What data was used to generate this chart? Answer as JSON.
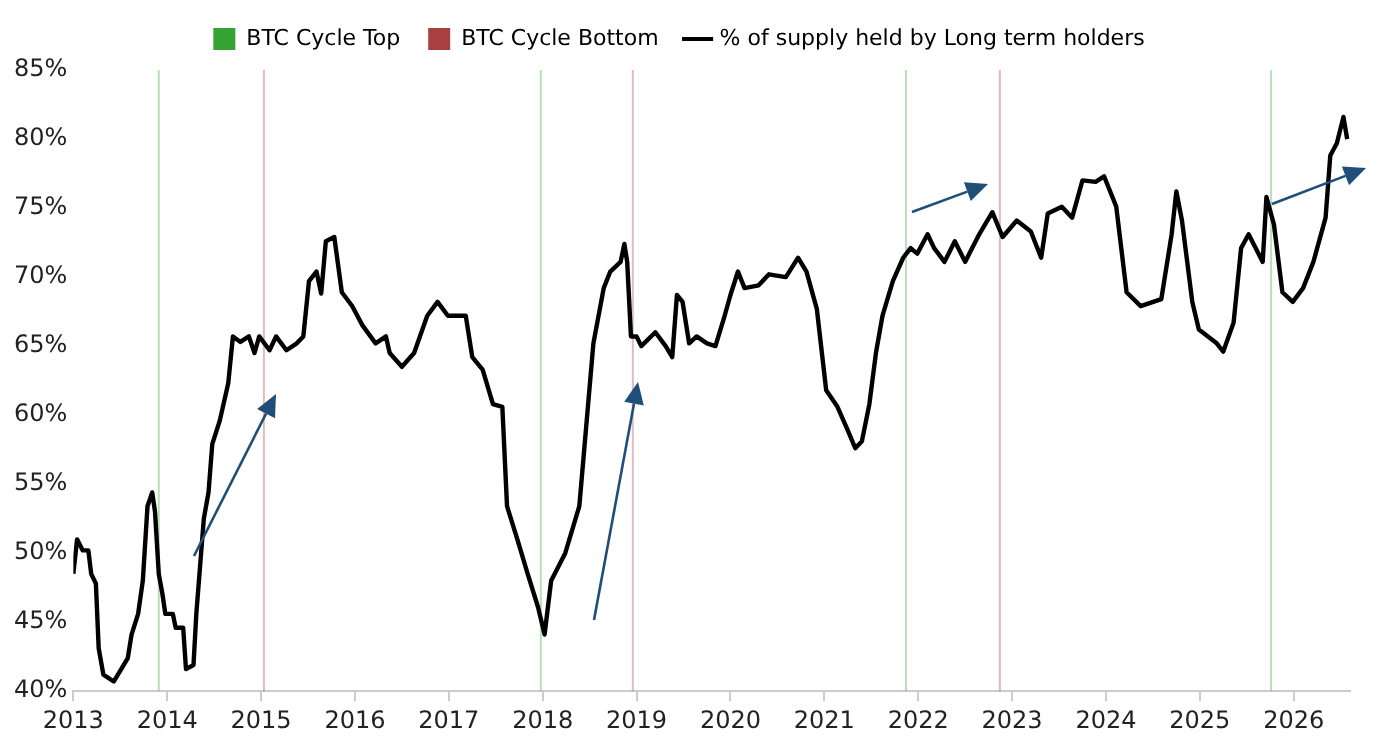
{
  "chart_data": {
    "type": "line",
    "x": [
      2013.0,
      2013.04,
      2013.1,
      2013.16,
      2013.19,
      2013.24,
      2013.27,
      2013.32,
      2013.43,
      2013.51,
      2013.58,
      2013.62,
      2013.69,
      2013.74,
      2013.79,
      2013.84,
      2013.87,
      2013.91,
      2013.95,
      2013.98,
      2014.06,
      2014.09,
      2014.17,
      2014.2,
      2014.28,
      2014.31,
      2014.39,
      2014.44,
      2014.48,
      2014.56,
      2014.65,
      2014.7,
      2014.78,
      2014.87,
      2014.93,
      2014.98,
      2015.09,
      2015.16,
      2015.27,
      2015.38,
      2015.45,
      2015.51,
      2015.59,
      2015.64,
      2015.69,
      2015.78,
      2015.86,
      2015.97,
      2016.08,
      2016.22,
      2016.33,
      2016.37,
      2016.5,
      2016.63,
      2016.77,
      2016.88,
      2016.99,
      2017.07,
      2017.18,
      2017.25,
      2017.36,
      2017.47,
      2017.57,
      2017.62,
      2017.73,
      2017.84,
      2017.95,
      2018.02,
      2018.09,
      2018.24,
      2018.39,
      2018.46,
      2018.54,
      2018.65,
      2018.72,
      2018.83,
      2018.87,
      2018.9,
      2018.94,
      2019.0,
      2019.05,
      2019.2,
      2019.31,
      2019.38,
      2019.43,
      2019.49,
      2019.56,
      2019.64,
      2019.75,
      2019.84,
      2019.93,
      2020.0,
      2020.08,
      2020.15,
      2020.3,
      2020.41,
      2020.59,
      2020.72,
      2020.81,
      2020.92,
      2021.02,
      2021.14,
      2021.25,
      2021.33,
      2021.4,
      2021.48,
      2021.55,
      2021.62,
      2021.73,
      2021.84,
      2021.92,
      2021.99,
      2022.1,
      2022.17,
      2022.28,
      2022.39,
      2022.5,
      2022.65,
      2022.79,
      2022.9,
      2023.05,
      2023.2,
      2023.31,
      2023.38,
      2023.53,
      2023.64,
      2023.75,
      2023.89,
      2023.98,
      2024.11,
      2024.22,
      2024.37,
      2024.59,
      2024.7,
      2024.75,
      2024.81,
      2024.92,
      2024.99,
      2025.18,
      2025.25,
      2025.36,
      2025.44,
      2025.52,
      2025.67,
      2025.71,
      2025.79,
      2025.88,
      2025.99,
      2026.1,
      2026.21,
      2026.34,
      2026.39,
      2026.46,
      2026.53,
      2026.57
    ],
    "series": [
      {
        "name": "% of supply held by Long term holders",
        "color": "#000000",
        "values": [
          48.5,
          51.0,
          50.2,
          50.2,
          48.5,
          47.8,
          43.1,
          41.2,
          40.7,
          41.6,
          42.4,
          44.1,
          45.6,
          48.0,
          53.4,
          54.4,
          53.0,
          48.5,
          47.0,
          45.6,
          45.6,
          44.6,
          44.6,
          41.6,
          41.9,
          45.6,
          52.5,
          54.4,
          57.9,
          59.6,
          62.3,
          65.7,
          65.3,
          65.7,
          64.5,
          65.7,
          64.7,
          65.7,
          64.7,
          65.2,
          65.7,
          69.7,
          70.4,
          68.8,
          72.6,
          72.9,
          68.9,
          67.9,
          66.5,
          65.2,
          65.7,
          64.5,
          63.5,
          64.5,
          67.2,
          68.2,
          67.2,
          67.2,
          67.2,
          64.2,
          63.3,
          60.8,
          60.6,
          53.4,
          51.0,
          48.5,
          46.1,
          44.1,
          48.0,
          50.0,
          53.4,
          58.9,
          65.2,
          69.2,
          70.4,
          71.1,
          72.4,
          71.1,
          65.7,
          65.7,
          65.0,
          66.0,
          65.0,
          64.2,
          68.7,
          68.2,
          65.2,
          65.7,
          65.2,
          65.0,
          67.0,
          68.7,
          70.4,
          69.2,
          69.4,
          70.2,
          70.0,
          71.4,
          70.4,
          67.7,
          61.8,
          60.6,
          58.9,
          57.6,
          58.1,
          60.8,
          64.5,
          67.2,
          69.7,
          71.4,
          72.1,
          71.7,
          73.1,
          72.1,
          71.1,
          72.6,
          71.1,
          73.1,
          74.7,
          72.9,
          74.1,
          73.3,
          71.4,
          74.6,
          75.1,
          74.3,
          77.0,
          76.9,
          77.3,
          75.1,
          68.9,
          67.9,
          68.4,
          73.1,
          76.2,
          74.1,
          68.2,
          66.2,
          65.2,
          64.6,
          66.7,
          72.1,
          73.1,
          71.1,
          75.8,
          73.8,
          68.9,
          68.2,
          69.2,
          71.1,
          74.3,
          78.8,
          79.7,
          81.6,
          80.0
        ]
      }
    ],
    "xlim": [
      2013,
      2026.6
    ],
    "xticks": [
      2013,
      2014,
      2015,
      2016,
      2017,
      2018,
      2019,
      2020,
      2021,
      2022,
      2023,
      2024,
      2025,
      2026
    ],
    "ylim": [
      40,
      85
    ],
    "yticks": [
      {
        "value": 40,
        "label": "40%"
      },
      {
        "value": 45,
        "label": "45%"
      },
      {
        "value": 50,
        "label": "50%"
      },
      {
        "value": 55,
        "label": "55%"
      },
      {
        "value": 60,
        "label": "60%"
      },
      {
        "value": 65,
        "label": "65%"
      },
      {
        "value": 70,
        "label": "70%"
      },
      {
        "value": 75,
        "label": "75%"
      },
      {
        "value": 80,
        "label": "80%"
      },
      {
        "value": 85,
        "label": "85%"
      }
    ],
    "ref_lines": [
      {
        "axis": "x",
        "value": 2013.91,
        "label": "BTC Cycle Top",
        "color": "#34a334"
      },
      {
        "axis": "x",
        "value": 2015.03,
        "label": "BTC Cycle Bottom",
        "color": "#a84040"
      },
      {
        "axis": "x",
        "value": 2017.98,
        "color": "#34a334"
      },
      {
        "axis": "x",
        "value": 2018.96,
        "color": "#a84040"
      },
      {
        "axis": "x",
        "value": 2021.87,
        "color": "#34a334"
      },
      {
        "axis": "x",
        "value": 2022.87,
        "color": "#a84040"
      },
      {
        "axis": "x",
        "value": 2025.76,
        "color": "#34a334"
      }
    ],
    "grid": false,
    "legend": "top",
    "marker": "none",
    "line_style": "solid"
  }
}
